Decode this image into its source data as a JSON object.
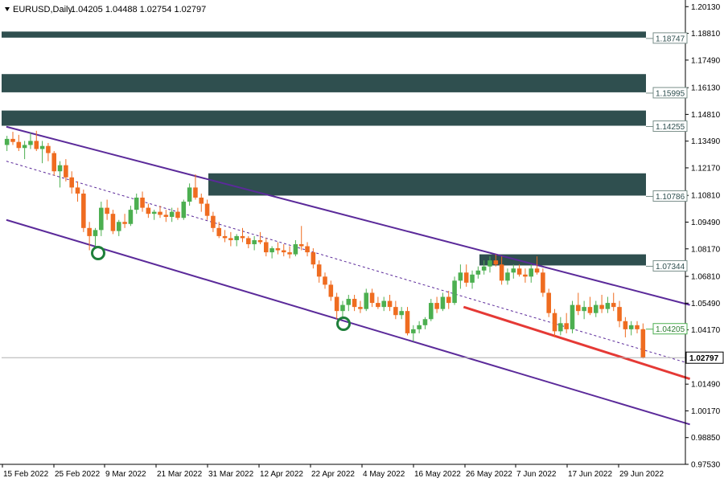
{
  "header": {
    "symbol": "EURUSD,Daily",
    "ohlc": "1.04205 1.04488 1.02754 1.02797",
    "menu_icon": "triangle-down-icon"
  },
  "colors": {
    "bull": "#4CAF50",
    "bear": "#EF6C20",
    "zone": "#2F4F4F",
    "channel": "#5B2A9A",
    "midline": "#5B2A9A",
    "support": "#E53935",
    "price_line": "#B0B0B0"
  },
  "chart_data": {
    "type": "candlestick",
    "title": "EURUSD,Daily",
    "ylim": [
      0.9753,
      1.203
    ],
    "y_ticks": [
      "1.20130",
      "1.18810",
      "1.17490",
      "1.16130",
      "1.14810",
      "1.13490",
      "1.12170",
      "1.10810",
      "1.09490",
      "1.08170",
      "1.06810",
      "1.05490",
      "1.04170",
      "1.02810",
      "1.01490",
      "1.00170",
      "0.98850",
      "0.97530"
    ],
    "x_tick_labels": [
      "15 Feb 2022",
      "25 Feb 2022",
      "9 Mar 2022",
      "21 Mar 2022",
      "31 Mar 2022",
      "12 Apr 2022",
      "22 Apr 2022",
      "4 May 2022",
      "16 May 2022",
      "26 May 2022",
      "7 Jun 2022",
      "17 Jun 2022",
      "29 Jun 2022"
    ],
    "last_price": "1.02797",
    "zones": [
      {
        "low": 1.186,
        "high": 1.189,
        "label": "1.18747"
      },
      {
        "low": 1.159,
        "high": 1.168,
        "label": "1.15995"
      },
      {
        "low": 1.1425,
        "high": 1.15,
        "label": "1.14255"
      },
      {
        "low": 1.108,
        "high": 1.119,
        "label": "1.10786"
      },
      {
        "low": 1.0735,
        "high": 1.079,
        "label": "1.07344"
      }
    ],
    "indicator_labels": [
      {
        "value": 1.04205,
        "text": "1.04205"
      }
    ],
    "channel": {
      "upper": [
        [
          1,
          1.142
        ],
        [
          294,
          1.054
        ]
      ],
      "lower": [
        [
          1,
          1.096
        ],
        [
          294,
          0.995
        ]
      ],
      "mid": [
        [
          1,
          1.125
        ],
        [
          294,
          1.025
        ]
      ]
    },
    "support_line": [
      [
        197,
        1.053
      ],
      [
        294,
        1.0175
      ]
    ],
    "markers": [
      {
        "x": 41,
        "value": 1.08
      },
      {
        "x": 145,
        "value": 1.044
      }
    ],
    "candles": [
      {
        "o": 1.133,
        "h": 1.1375,
        "l": 1.13,
        "c": 1.136
      },
      {
        "o": 1.136,
        "h": 1.1395,
        "l": 1.133,
        "c": 1.1345
      },
      {
        "o": 1.1345,
        "h": 1.138,
        "l": 1.13,
        "c": 1.1315
      },
      {
        "o": 1.1315,
        "h": 1.135,
        "l": 1.126,
        "c": 1.133
      },
      {
        "o": 1.133,
        "h": 1.139,
        "l": 1.131,
        "c": 1.135
      },
      {
        "o": 1.135,
        "h": 1.14,
        "l": 1.13,
        "c": 1.131
      },
      {
        "o": 1.131,
        "h": 1.135,
        "l": 1.124,
        "c": 1.1325
      },
      {
        "o": 1.1325,
        "h": 1.134,
        "l": 1.125,
        "c": 1.129
      },
      {
        "o": 1.129,
        "h": 1.13,
        "l": 1.118,
        "c": 1.12
      },
      {
        "o": 1.12,
        "h": 1.125,
        "l": 1.112,
        "c": 1.123
      },
      {
        "o": 1.123,
        "h": 1.126,
        "l": 1.115,
        "c": 1.117
      },
      {
        "o": 1.117,
        "h": 1.12,
        "l": 1.109,
        "c": 1.112
      },
      {
        "o": 1.112,
        "h": 1.115,
        "l": 1.105,
        "c": 1.109
      },
      {
        "o": 1.109,
        "h": 1.111,
        "l": 1.09,
        "c": 1.092
      },
      {
        "o": 1.092,
        "h": 1.095,
        "l": 1.081,
        "c": 1.088
      },
      {
        "o": 1.088,
        "h": 1.092,
        "l": 1.083,
        "c": 1.091
      },
      {
        "o": 1.091,
        "h": 1.105,
        "l": 1.088,
        "c": 1.102
      },
      {
        "o": 1.102,
        "h": 1.106,
        "l": 1.096,
        "c": 1.099
      },
      {
        "o": 1.099,
        "h": 1.101,
        "l": 1.089,
        "c": 1.0905
      },
      {
        "o": 1.0905,
        "h": 1.096,
        "l": 1.088,
        "c": 1.095
      },
      {
        "o": 1.095,
        "h": 1.099,
        "l": 1.092,
        "c": 1.094
      },
      {
        "o": 1.094,
        "h": 1.103,
        "l": 1.093,
        "c": 1.101
      },
      {
        "o": 1.101,
        "h": 1.109,
        "l": 1.099,
        "c": 1.107
      },
      {
        "o": 1.107,
        "h": 1.11,
        "l": 1.1,
        "c": 1.102
      },
      {
        "o": 1.102,
        "h": 1.104,
        "l": 1.097,
        "c": 1.099
      },
      {
        "o": 1.099,
        "h": 1.101,
        "l": 1.096,
        "c": 1.1
      },
      {
        "o": 1.1,
        "h": 1.103,
        "l": 1.097,
        "c": 1.0985
      },
      {
        "o": 1.0985,
        "h": 1.101,
        "l": 1.095,
        "c": 1.0975
      },
      {
        "o": 1.0975,
        "h": 1.102,
        "l": 1.095,
        "c": 1.1
      },
      {
        "o": 1.1,
        "h": 1.102,
        "l": 1.096,
        "c": 1.097
      },
      {
        "o": 1.097,
        "h": 1.106,
        "l": 1.096,
        "c": 1.105
      },
      {
        "o": 1.105,
        "h": 1.114,
        "l": 1.103,
        "c": 1.112
      },
      {
        "o": 1.112,
        "h": 1.1185,
        "l": 1.106,
        "c": 1.107
      },
      {
        "o": 1.107,
        "h": 1.109,
        "l": 1.1,
        "c": 1.104
      },
      {
        "o": 1.104,
        "h": 1.106,
        "l": 1.096,
        "c": 1.098
      },
      {
        "o": 1.098,
        "h": 1.1,
        "l": 1.09,
        "c": 1.092
      },
      {
        "o": 1.092,
        "h": 1.095,
        "l": 1.087,
        "c": 1.088
      },
      {
        "o": 1.088,
        "h": 1.091,
        "l": 1.085,
        "c": 1.087
      },
      {
        "o": 1.087,
        "h": 1.09,
        "l": 1.083,
        "c": 1.086
      },
      {
        "o": 1.086,
        "h": 1.089,
        "l": 1.083,
        "c": 1.088
      },
      {
        "o": 1.088,
        "h": 1.092,
        "l": 1.085,
        "c": 1.087
      },
      {
        "o": 1.087,
        "h": 1.088,
        "l": 1.082,
        "c": 1.084
      },
      {
        "o": 1.084,
        "h": 1.088,
        "l": 1.081,
        "c": 1.086
      },
      {
        "o": 1.086,
        "h": 1.09,
        "l": 1.084,
        "c": 1.085
      },
      {
        "o": 1.085,
        "h": 1.087,
        "l": 1.078,
        "c": 1.08
      },
      {
        "o": 1.08,
        "h": 1.083,
        "l": 1.077,
        "c": 1.082
      },
      {
        "o": 1.082,
        "h": 1.085,
        "l": 1.079,
        "c": 1.081
      },
      {
        "o": 1.081,
        "h": 1.084,
        "l": 1.078,
        "c": 1.08
      },
      {
        "o": 1.08,
        "h": 1.083,
        "l": 1.077,
        "c": 1.079
      },
      {
        "o": 1.079,
        "h": 1.086,
        "l": 1.078,
        "c": 1.084
      },
      {
        "o": 1.084,
        "h": 1.093,
        "l": 1.081,
        "c": 1.083
      },
      {
        "o": 1.083,
        "h": 1.085,
        "l": 1.078,
        "c": 1.08
      },
      {
        "o": 1.08,
        "h": 1.082,
        "l": 1.072,
        "c": 1.074
      },
      {
        "o": 1.074,
        "h": 1.076,
        "l": 1.065,
        "c": 1.068
      },
      {
        "o": 1.068,
        "h": 1.07,
        "l": 1.062,
        "c": 1.064
      },
      {
        "o": 1.064,
        "h": 1.066,
        "l": 1.056,
        "c": 1.058
      },
      {
        "o": 1.058,
        "h": 1.06,
        "l": 1.047,
        "c": 1.051
      },
      {
        "o": 1.051,
        "h": 1.056,
        "l": 1.047,
        "c": 1.054
      },
      {
        "o": 1.054,
        "h": 1.059,
        "l": 1.051,
        "c": 1.057
      },
      {
        "o": 1.057,
        "h": 1.059,
        "l": 1.051,
        "c": 1.053
      },
      {
        "o": 1.053,
        "h": 1.056,
        "l": 1.05,
        "c": 1.052
      },
      {
        "o": 1.052,
        "h": 1.062,
        "l": 1.051,
        "c": 1.06
      },
      {
        "o": 1.06,
        "h": 1.062,
        "l": 1.053,
        "c": 1.055
      },
      {
        "o": 1.055,
        "h": 1.058,
        "l": 1.052,
        "c": 1.053
      },
      {
        "o": 1.053,
        "h": 1.058,
        "l": 1.051,
        "c": 1.056
      },
      {
        "o": 1.056,
        "h": 1.059,
        "l": 1.051,
        "c": 1.053
      },
      {
        "o": 1.053,
        "h": 1.056,
        "l": 1.047,
        "c": 1.049
      },
      {
        "o": 1.049,
        "h": 1.053,
        "l": 1.047,
        "c": 1.051
      },
      {
        "o": 1.051,
        "h": 1.053,
        "l": 1.039,
        "c": 1.04
      },
      {
        "o": 1.04,
        "h": 1.044,
        "l": 1.036,
        "c": 1.042
      },
      {
        "o": 1.042,
        "h": 1.046,
        "l": 1.04,
        "c": 1.044
      },
      {
        "o": 1.044,
        "h": 1.048,
        "l": 1.042,
        "c": 1.047
      },
      {
        "o": 1.047,
        "h": 1.057,
        "l": 1.046,
        "c": 1.055
      },
      {
        "o": 1.055,
        "h": 1.058,
        "l": 1.05,
        "c": 1.052
      },
      {
        "o": 1.052,
        "h": 1.06,
        "l": 1.051,
        "c": 1.058
      },
      {
        "o": 1.058,
        "h": 1.061,
        "l": 1.052,
        "c": 1.055
      },
      {
        "o": 1.055,
        "h": 1.068,
        "l": 1.054,
        "c": 1.066
      },
      {
        "o": 1.066,
        "h": 1.074,
        "l": 1.062,
        "c": 1.07
      },
      {
        "o": 1.07,
        "h": 1.074,
        "l": 1.063,
        "c": 1.065
      },
      {
        "o": 1.065,
        "h": 1.071,
        "l": 1.062,
        "c": 1.069
      },
      {
        "o": 1.069,
        "h": 1.073,
        "l": 1.067,
        "c": 1.071
      },
      {
        "o": 1.071,
        "h": 1.076,
        "l": 1.069,
        "c": 1.073
      },
      {
        "o": 1.073,
        "h": 1.078,
        "l": 1.07,
        "c": 1.076
      },
      {
        "o": 1.076,
        "h": 1.079,
        "l": 1.073,
        "c": 1.074
      },
      {
        "o": 1.074,
        "h": 1.078,
        "l": 1.064,
        "c": 1.066
      },
      {
        "o": 1.066,
        "h": 1.072,
        "l": 1.064,
        "c": 1.07
      },
      {
        "o": 1.07,
        "h": 1.074,
        "l": 1.067,
        "c": 1.072
      },
      {
        "o": 1.072,
        "h": 1.074,
        "l": 1.068,
        "c": 1.069
      },
      {
        "o": 1.069,
        "h": 1.072,
        "l": 1.065,
        "c": 1.068
      },
      {
        "o": 1.068,
        "h": 1.074,
        "l": 1.065,
        "c": 1.072
      },
      {
        "o": 1.072,
        "h": 1.078,
        "l": 1.069,
        "c": 1.07
      },
      {
        "o": 1.07,
        "h": 1.072,
        "l": 1.058,
        "c": 1.06
      },
      {
        "o": 1.06,
        "h": 1.062,
        "l": 1.048,
        "c": 1.05
      },
      {
        "o": 1.05,
        "h": 1.052,
        "l": 1.038,
        "c": 1.041
      },
      {
        "o": 1.041,
        "h": 1.048,
        "l": 1.039,
        "c": 1.045
      },
      {
        "o": 1.045,
        "h": 1.05,
        "l": 1.04,
        "c": 1.042
      },
      {
        "o": 1.042,
        "h": 1.056,
        "l": 1.04,
        "c": 1.054
      },
      {
        "o": 1.054,
        "h": 1.06,
        "l": 1.049,
        "c": 1.051
      },
      {
        "o": 1.051,
        "h": 1.056,
        "l": 1.047,
        "c": 1.053
      },
      {
        "o": 1.053,
        "h": 1.058,
        "l": 1.049,
        "c": 1.05
      },
      {
        "o": 1.05,
        "h": 1.056,
        "l": 1.048,
        "c": 1.054
      },
      {
        "o": 1.054,
        "h": 1.059,
        "l": 1.05,
        "c": 1.052
      },
      {
        "o": 1.052,
        "h": 1.058,
        "l": 1.05,
        "c": 1.055
      },
      {
        "o": 1.055,
        "h": 1.06,
        "l": 1.051,
        "c": 1.053
      },
      {
        "o": 1.053,
        "h": 1.056,
        "l": 1.043,
        "c": 1.046
      },
      {
        "o": 1.046,
        "h": 1.048,
        "l": 1.038,
        "c": 1.042
      },
      {
        "o": 1.042,
        "h": 1.046,
        "l": 1.039,
        "c": 1.044
      },
      {
        "o": 1.044,
        "h": 1.046,
        "l": 1.04,
        "c": 1.042
      },
      {
        "o": 1.04205,
        "h": 1.04488,
        "l": 1.02754,
        "c": 1.02797
      }
    ]
  }
}
